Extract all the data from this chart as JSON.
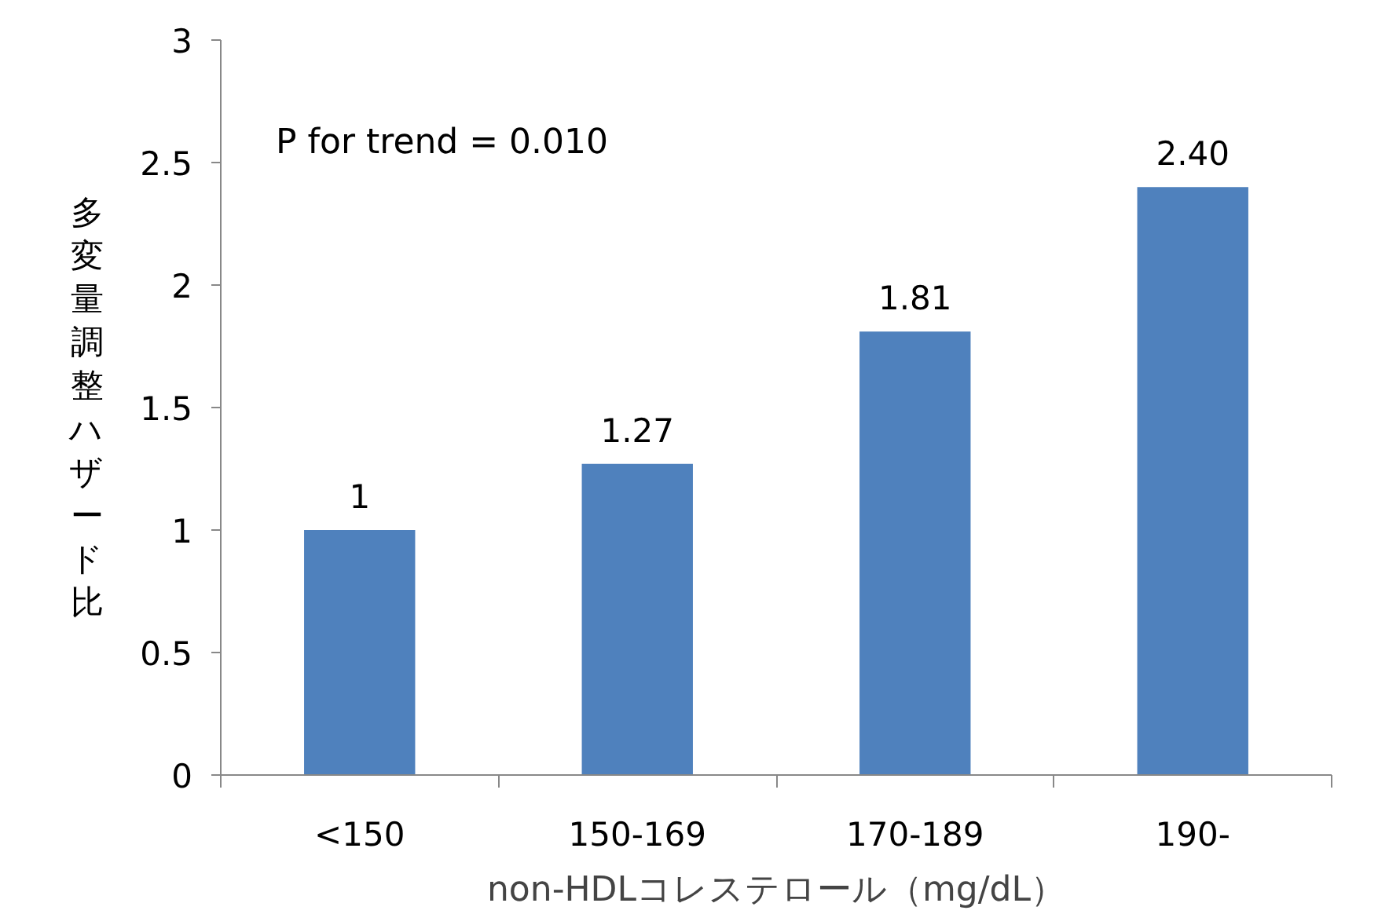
{
  "chart_data": {
    "type": "bar",
    "categories": [
      "<150",
      "150-169",
      "170-189",
      "190-"
    ],
    "values": [
      1,
      1.27,
      1.81,
      2.4
    ],
    "value_labels": [
      "1",
      "1.27",
      "1.81",
      "2.40"
    ],
    "color": "#4f81bd",
    "xlabel": "non-HDLコレステロール（mg/dL）",
    "ylabel": "多変量調整ハザード比",
    "ylim": [
      0,
      3
    ],
    "yticks": [
      0,
      0.5,
      1,
      1.5,
      2,
      2.5,
      3
    ],
    "annotations": [
      "P for trend = 0.010"
    ],
    "grid": false
  }
}
